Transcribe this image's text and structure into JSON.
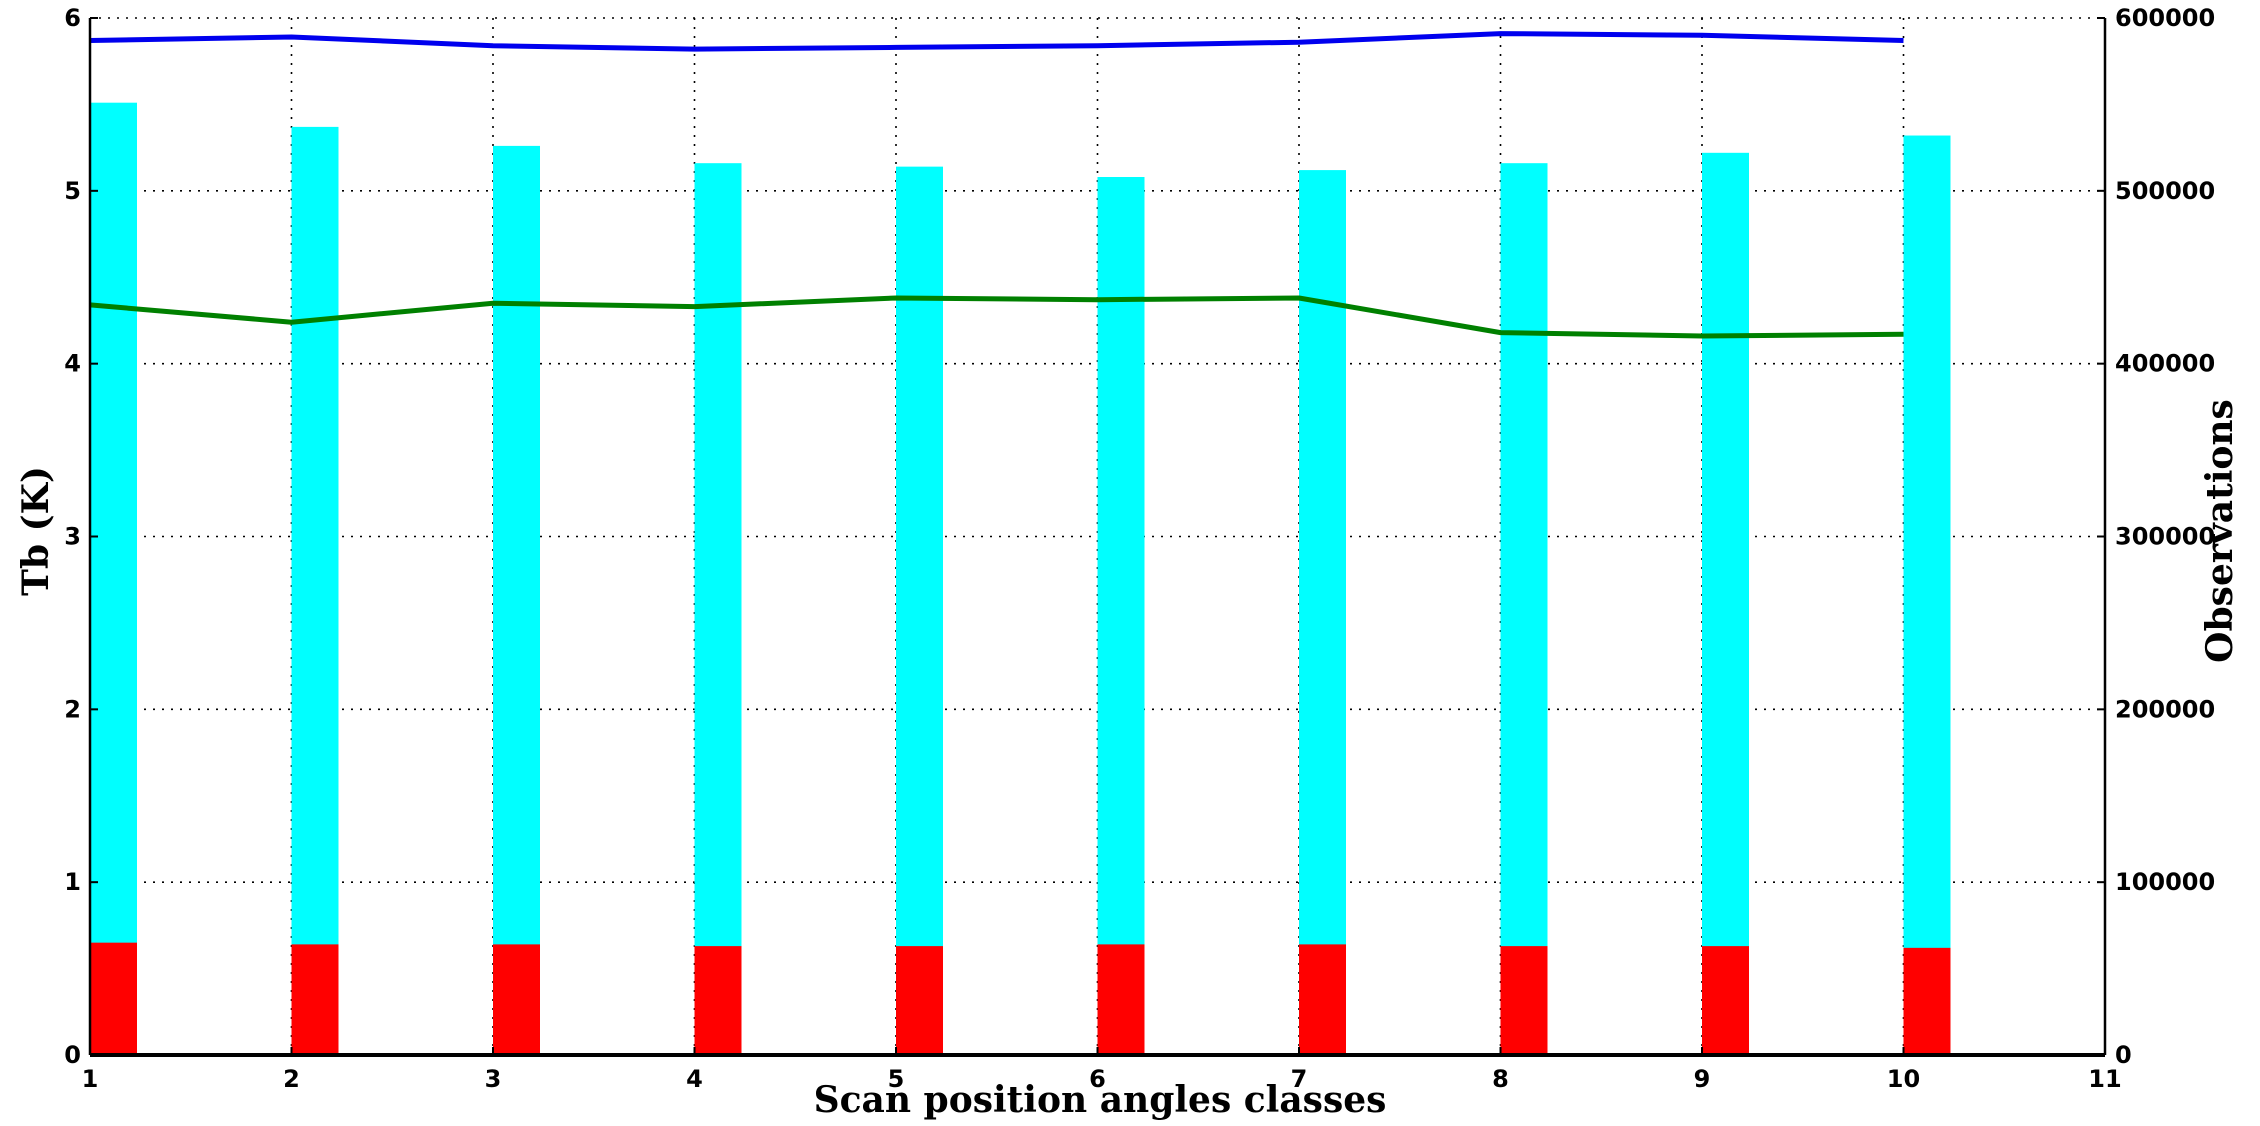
{
  "chart_data": {
    "type": "bar",
    "title": "",
    "xlabel": "Scan position angles classes",
    "ylabel_left": "Tb (K)",
    "ylabel_right": "Observations",
    "x_ticks": [
      "1",
      "2",
      "3",
      "4",
      "5",
      "6",
      "7",
      "8",
      "9",
      "10",
      "11"
    ],
    "xlim": [
      1,
      11
    ],
    "ylim_left": [
      0,
      6
    ],
    "ylim_right": [
      0,
      600000
    ],
    "y_ticks_left": [
      "0",
      "1",
      "2",
      "3",
      "4",
      "5",
      "6"
    ],
    "y_ticks_right": [
      "0",
      "100000",
      "200000",
      "300000",
      "400000",
      "500000",
      "600000"
    ],
    "grid": true,
    "legend": "none",
    "categories": [
      1,
      2,
      3,
      4,
      5,
      6,
      7,
      8,
      9,
      10
    ],
    "bars": [
      {
        "axis": "right",
        "color": "#00ffff",
        "values": [
          551000,
          537000,
          526000,
          516000,
          514000,
          508000,
          512000,
          516000,
          522000,
          532000
        ]
      },
      {
        "axis": "left",
        "color": "#ff0000",
        "values": [
          0.65,
          0.64,
          0.64,
          0.63,
          0.63,
          0.64,
          0.64,
          0.63,
          0.63,
          0.62
        ]
      }
    ],
    "series": [
      {
        "axis": "left",
        "color": "#0000ee",
        "values": [
          5.87,
          5.89,
          5.84,
          5.82,
          5.83,
          5.84,
          5.86,
          5.91,
          5.9,
          5.87
        ]
      },
      {
        "axis": "left",
        "color": "#008000",
        "values": [
          4.34,
          4.24,
          4.35,
          4.33,
          4.38,
          4.37,
          4.38,
          4.18,
          4.16,
          4.17
        ]
      }
    ]
  }
}
